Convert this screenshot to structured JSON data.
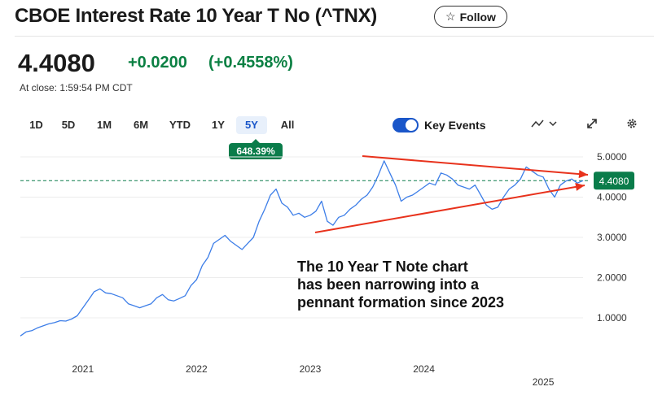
{
  "header": {
    "title": "CBOE Interest Rate 10 Year T No (^TNX)",
    "follow_label": "Follow",
    "follow_icon": "star-icon"
  },
  "quote": {
    "price": "4.4080",
    "change": "+0.0200",
    "change_pct": "(+0.4558%)",
    "at_close": "At close: 1:59:54 PM CDT",
    "positive_color": "#0b8043"
  },
  "ranges": [
    {
      "label": "1D"
    },
    {
      "label": "5D"
    },
    {
      "label": "1M"
    },
    {
      "label": "6M"
    },
    {
      "label": "YTD"
    },
    {
      "label": "1Y"
    },
    {
      "label": "5Y",
      "active": true
    },
    {
      "label": "All"
    }
  ],
  "range_badge": "648.39%",
  "key_events": {
    "label": "Key Events",
    "enabled": true
  },
  "controls": {
    "chart_type_icon": "line-chart-icon",
    "dropdown_icon": "chevron-down-icon",
    "expand_icon": "expand-icon",
    "settings_icon": "gear-icon"
  },
  "annotation": {
    "lines": [
      "The 10 Year T Note chart",
      "has been narrowing into a",
      "pennant formation since 2023"
    ],
    "arrow_color": "#e8321c"
  },
  "chart_data": {
    "type": "line",
    "ylim": [
      0.5,
      5.2
    ],
    "y_ticks": [
      "5.0000",
      "4.0000",
      "3.0000",
      "2.0000",
      "1.0000"
    ],
    "x_labels": [
      "2021",
      "2022",
      "2023",
      "2024",
      "2025"
    ],
    "last_price_label": "4.4080",
    "last_price": 4.408,
    "line_color": "#3d7ee8",
    "series": [
      {
        "x": [
          2020.55,
          2020.6,
          2020.65,
          2020.7,
          2020.75,
          2020.8,
          2020.85,
          2020.9,
          2020.95,
          2021.0,
          2021.05,
          2021.1,
          2021.15,
          2021.2,
          2021.25,
          2021.3,
          2021.35,
          2021.4,
          2021.45,
          2021.5,
          2021.55,
          2021.6,
          2021.65,
          2021.7,
          2021.75,
          2021.8,
          2021.85,
          2021.9,
          2021.95,
          2022.0,
          2022.05,
          2022.1,
          2022.15,
          2022.2,
          2022.25,
          2022.3,
          2022.35,
          2022.4,
          2022.45,
          2022.5,
          2022.55,
          2022.6,
          2022.65,
          2022.7,
          2022.75,
          2022.8,
          2022.85,
          2022.9,
          2022.95,
          2023.0,
          2023.05,
          2023.1,
          2023.15,
          2023.2,
          2023.25,
          2023.3,
          2023.35,
          2023.4,
          2023.45,
          2023.5,
          2023.55,
          2023.6,
          2023.65,
          2023.7,
          2023.75,
          2023.8,
          2023.85,
          2023.9,
          2023.95,
          2024.0,
          2024.05,
          2024.1,
          2024.15,
          2024.2,
          2024.25,
          2024.3,
          2024.35,
          2024.4,
          2024.45,
          2024.5,
          2024.55,
          2024.6,
          2024.65,
          2024.7,
          2024.75,
          2024.8,
          2024.85,
          2024.9,
          2024.95,
          2025.0,
          2025.05,
          2025.1,
          2025.15,
          2025.2,
          2025.25,
          2025.3,
          2025.35,
          2025.4,
          2025.45,
          2025.5
        ],
        "values": [
          0.55,
          0.65,
          0.68,
          0.75,
          0.8,
          0.85,
          0.88,
          0.93,
          0.92,
          0.97,
          1.05,
          1.25,
          1.45,
          1.65,
          1.72,
          1.62,
          1.6,
          1.55,
          1.5,
          1.35,
          1.3,
          1.25,
          1.3,
          1.35,
          1.5,
          1.58,
          1.45,
          1.42,
          1.48,
          1.55,
          1.8,
          1.95,
          2.3,
          2.5,
          2.85,
          2.95,
          3.05,
          2.9,
          2.8,
          2.7,
          2.85,
          3.0,
          3.4,
          3.7,
          4.05,
          4.2,
          3.85,
          3.75,
          3.55,
          3.6,
          3.5,
          3.55,
          3.65,
          3.9,
          3.4,
          3.3,
          3.5,
          3.55,
          3.7,
          3.8,
          3.95,
          4.05,
          4.25,
          4.55,
          4.9,
          4.6,
          4.3,
          3.9,
          4.0,
          4.05,
          4.15,
          4.25,
          4.35,
          4.3,
          4.6,
          4.55,
          4.45,
          4.3,
          4.25,
          4.2,
          4.3,
          4.05,
          3.8,
          3.7,
          3.75,
          4.0,
          4.2,
          4.3,
          4.45,
          4.75,
          4.65,
          4.55,
          4.5,
          4.2,
          4.0,
          4.3,
          4.4,
          4.45,
          4.35,
          4.41
        ]
      }
    ]
  }
}
